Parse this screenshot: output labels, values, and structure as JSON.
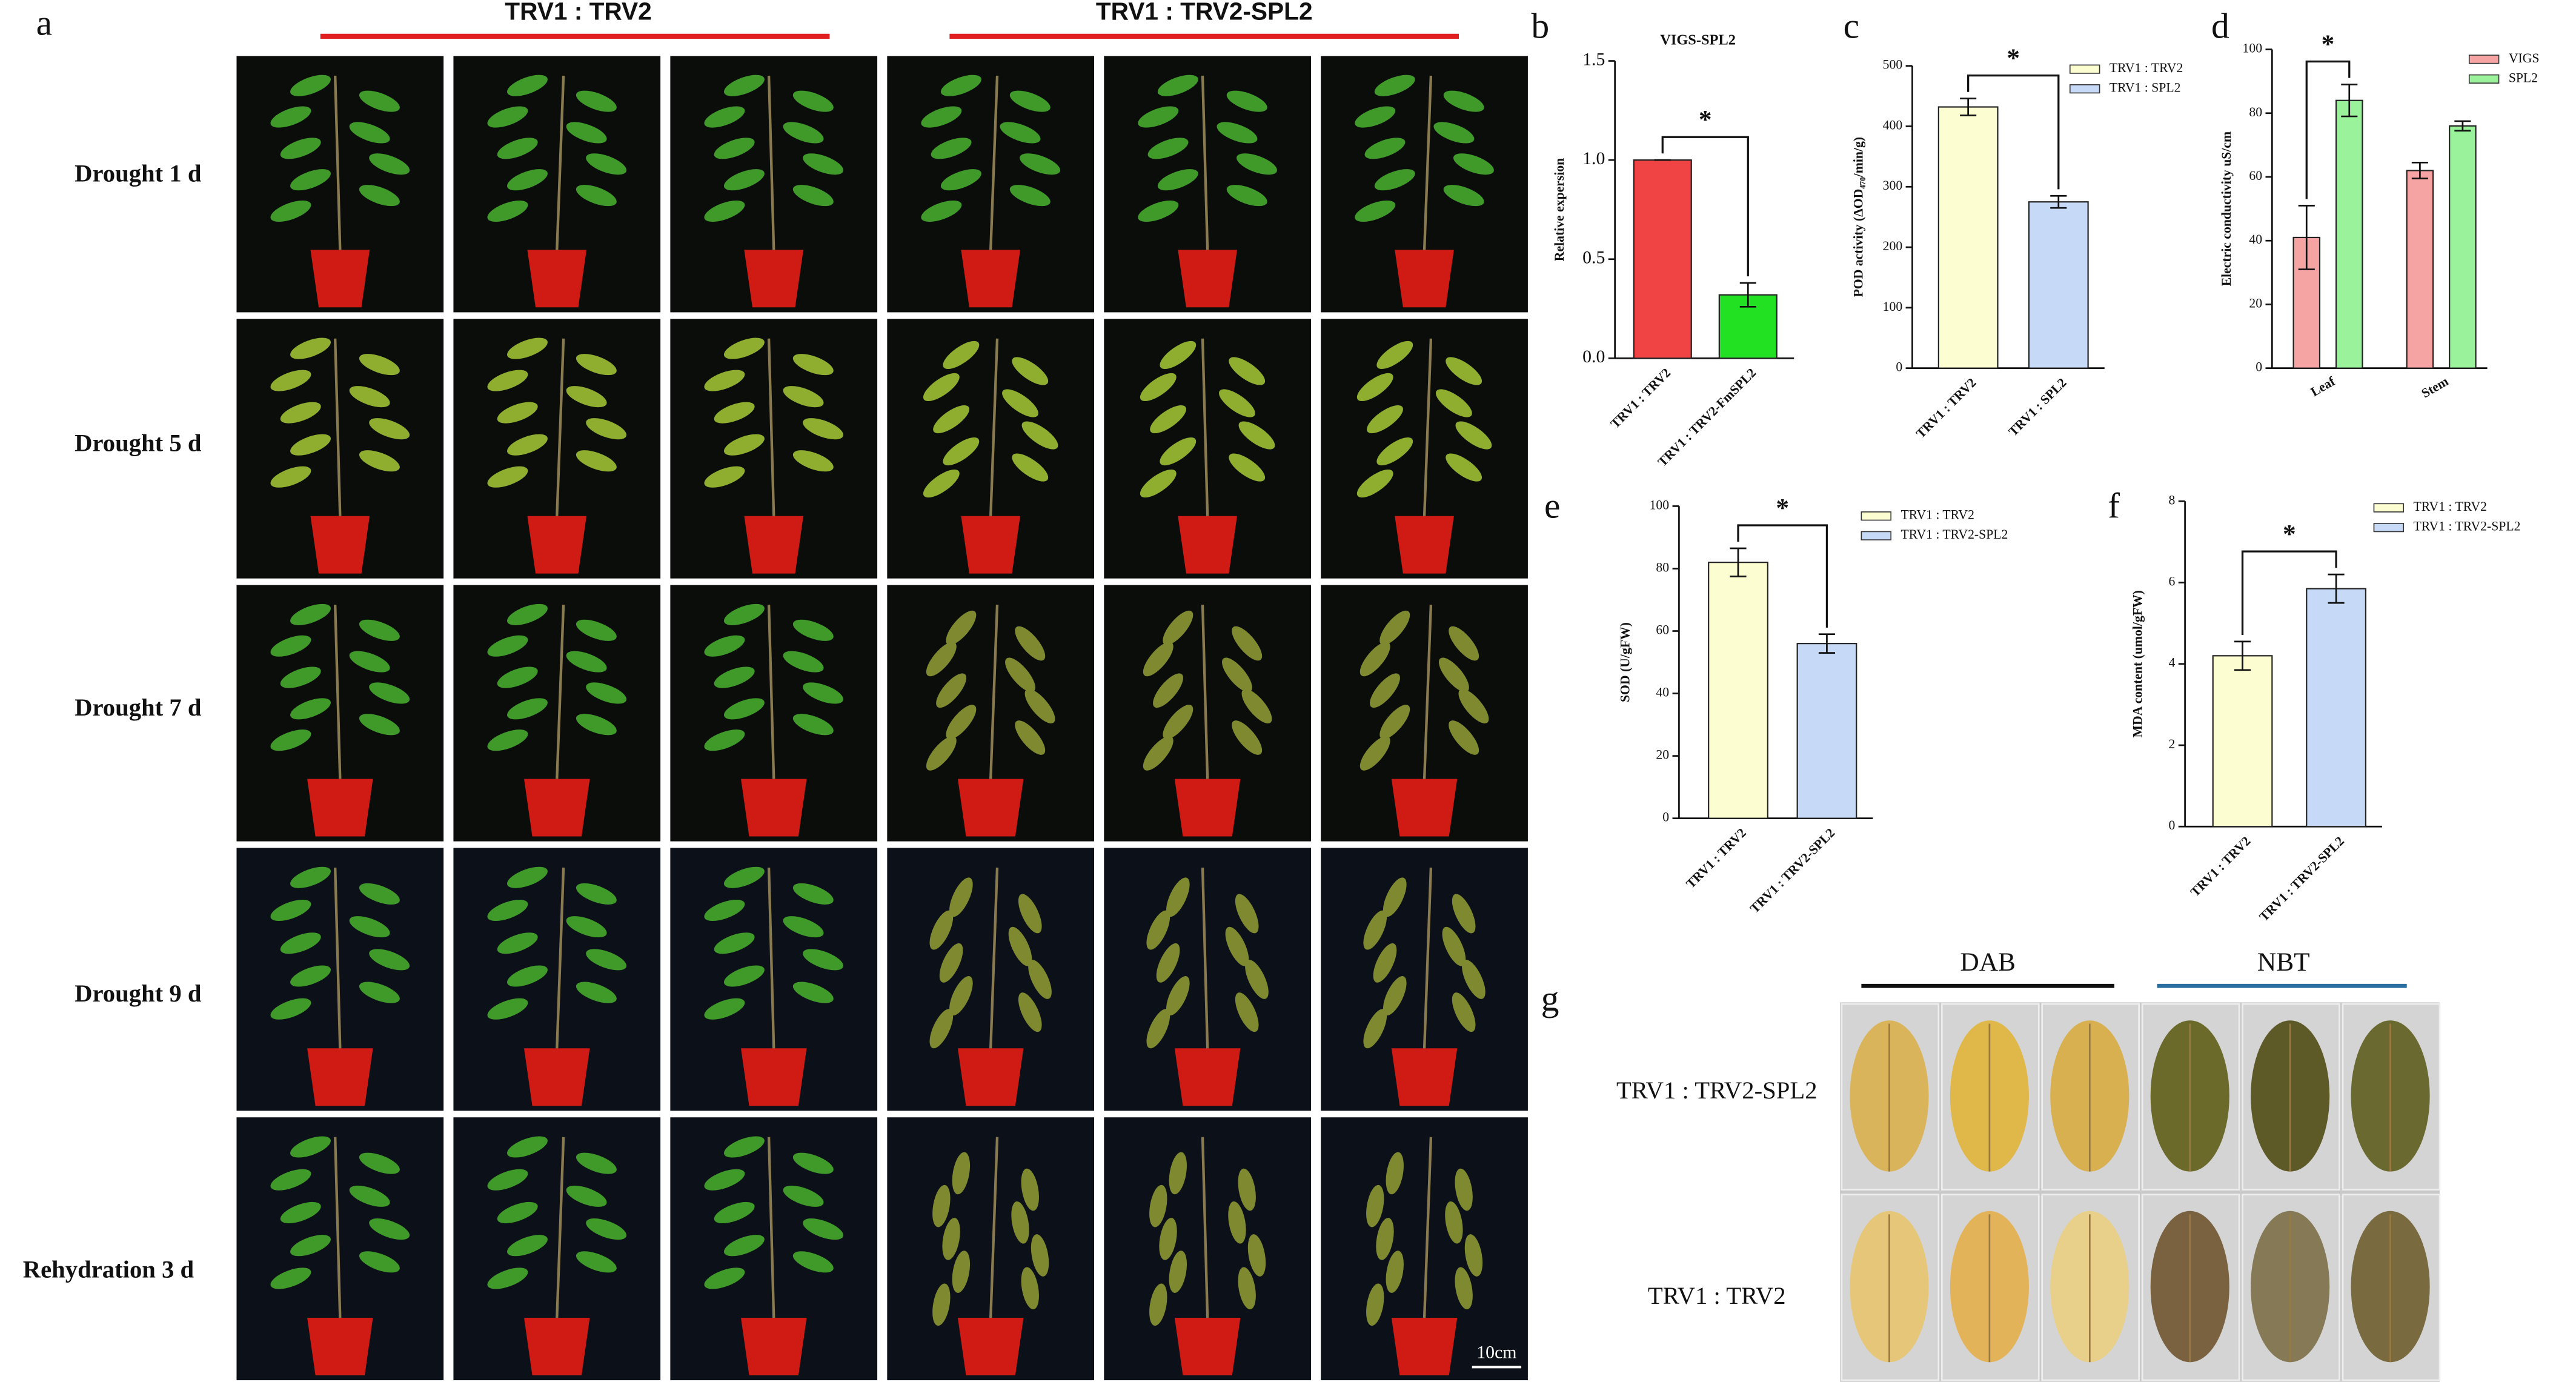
{
  "panel_a": {
    "label": "a",
    "headers": [
      "TRV1 : TRV2",
      "TRV1 : TRV2-SPL2"
    ],
    "rows": [
      "Drought 1 d",
      "Drought 5 d",
      "Drought 7 d",
      "Drought 9 d",
      "Rehydration  3 d"
    ],
    "scale_bar": "10cm"
  },
  "panel_labels": [
    "b",
    "c",
    "d",
    "e",
    "f"
  ],
  "chart_data": [
    {
      "type": "bar",
      "title": "VIGS-SPL2",
      "ylabel": "Relative expersion",
      "categories": [
        "TRV1 : TRV2",
        "TRV1 : TRV2-FmSPL2"
      ],
      "values": [
        1.0,
        0.32
      ],
      "errors": [
        0,
        0.06
      ],
      "colors": [
        "#f04444",
        "#22e022"
      ],
      "ylim": [
        0,
        1.5
      ],
      "yticks": [
        {
          "value": 0,
          "label": "0.0"
        },
        0.5,
        {
          "value": 1,
          "label": "1.0"
        },
        1.5
      ],
      "significance": "*",
      "legend": false
    },
    {
      "type": "bar",
      "ylabel": "POD activity (ΔOD₄₇₀/min/g)",
      "categories": [
        "TRV1 : TRV2",
        "TRV1 : SPL2"
      ],
      "values": [
        432,
        275
      ],
      "errors": [
        14,
        10
      ],
      "colors": [
        "#fdfdd2",
        "#c6d9f6"
      ],
      "ylim": [
        0,
        500
      ],
      "yticks": [
        0,
        100,
        200,
        300,
        400,
        500
      ],
      "significance": "*",
      "legend": true
    },
    {
      "type": "grouped_bar",
      "ylabel": "Electric conductivity uS/cm",
      "categories": [
        "Leaf",
        "Stem"
      ],
      "series": [
        {
          "name": "VIGS",
          "color": "#f5a3a3",
          "values": [
            41,
            62
          ],
          "errors": [
            10,
            2.5
          ]
        },
        {
          "name": "SPL2",
          "color": "#9af29a",
          "values": [
            84,
            76
          ],
          "errors": [
            5,
            1.5
          ]
        }
      ],
      "ylim": [
        0,
        100
      ],
      "yticks": [
        0,
        20,
        40,
        60,
        80,
        100
      ],
      "significance": "*",
      "legend": true
    },
    {
      "type": "bar",
      "ylabel": "SOD (U/gFW)",
      "categories": [
        "TRV1 : TRV2",
        "TRV1 : TRV2-SPL2"
      ],
      "values": [
        82,
        56
      ],
      "errors": [
        4.5,
        3
      ],
      "colors": [
        "#fdfdd2",
        "#c6d9f6"
      ],
      "ylim": [
        0,
        100
      ],
      "yticks": [
        0,
        20,
        40,
        60,
        80,
        100
      ],
      "significance": "*",
      "legend": true
    },
    {
      "type": "bar",
      "ylabel": "MDA content (umol/gFW)",
      "categories": [
        "TRV1 : TRV2",
        "TRV1 : TRV2-SPL2"
      ],
      "values": [
        4.2,
        5.85
      ],
      "errors": [
        0.35,
        0.35
      ],
      "colors": [
        "#fdfdd2",
        "#c6d9f6"
      ],
      "ylim": [
        0,
        8
      ],
      "yticks": [
        0,
        2,
        4,
        6,
        8
      ],
      "significance": "*",
      "legend": true
    }
  ],
  "panel_g": {
    "label": "g",
    "stains": [
      "DAB",
      "NBT"
    ],
    "rows": [
      "TRV1 : TRV2-SPL2",
      "TRV1 : TRV2"
    ]
  }
}
